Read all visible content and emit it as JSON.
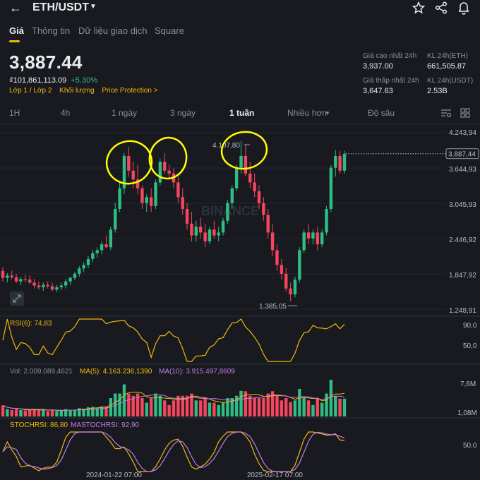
{
  "header": {
    "pair": "ETH/USDT",
    "tabs": [
      "Giá",
      "Thông tin",
      "Dữ liệu giao dịch",
      "Square"
    ],
    "active_tab": 0
  },
  "summary": {
    "price": "3,887.44",
    "local_price": "₫101,861,113.09",
    "change": "+5.30%",
    "links": [
      "Lớp 1 / Lớp 2",
      "Khối lượng",
      "Price Protection >"
    ]
  },
  "stats": {
    "high_label": "Giá cao nhất 24h",
    "high_value": "3,937.00",
    "vol_eth_label": "KL 24h(ETH)",
    "vol_eth_value": "661,505.87",
    "low_label": "Giá thấp nhất 24h",
    "low_value": "3,647.63",
    "vol_usdt_label": "KL 24h(USDT)",
    "vol_usdt_value": "2.53B"
  },
  "timeframes": [
    "1H",
    "4h",
    "1 ngày",
    "3 ngày",
    "1 tuần",
    "Nhiều hơn",
    "Độ sâu"
  ],
  "active_timeframe": 4,
  "chart": {
    "watermark": "BINANCE",
    "y_ticks": [
      "4.243,94",
      "3.644,93",
      "3.045,93",
      "2.446,92",
      "1.847,92",
      "1.248,91"
    ],
    "current_price_label": "3.887,44",
    "high_marker": "4.107,80",
    "low_marker": "1.385,05",
    "x_labels": [
      "2024-01-22 07:00",
      "2025-02-17 07:00"
    ]
  },
  "rsi": {
    "label": "RSI(6): 74,83",
    "ticks": [
      "90,0",
      "50,0"
    ]
  },
  "volume": {
    "vol_label": "Vol: 2.009.089,4621",
    "ma5_label": "MA(5): 4.163.236,1390",
    "ma10_label": "MA(10): 3.915.497,8609",
    "ticks": [
      "7,6M",
      "1,08M"
    ]
  },
  "stochrsi": {
    "label": "STOCHRSI: 86,80",
    "mlabel": "MASTOCHRSI: 92,90",
    "ticks": [
      "50,0"
    ]
  },
  "colors": {
    "up": "#2ebd85",
    "down": "#f6465d",
    "accent": "#f0b90b",
    "annotation": "#ffff00",
    "background": "#181a20"
  },
  "chart_data": {
    "type": "candlestick",
    "ylim": [
      1248.91,
      4243.94
    ],
    "series": [
      {
        "o": 1900,
        "h": 1960,
        "l": 1720,
        "c": 1780
      },
      {
        "o": 1780,
        "h": 1860,
        "l": 1700,
        "c": 1820
      },
      {
        "o": 1820,
        "h": 1900,
        "l": 1760,
        "c": 1790
      },
      {
        "o": 1790,
        "h": 1850,
        "l": 1690,
        "c": 1720
      },
      {
        "o": 1720,
        "h": 1800,
        "l": 1660,
        "c": 1760
      },
      {
        "o": 1760,
        "h": 1830,
        "l": 1700,
        "c": 1750
      },
      {
        "o": 1750,
        "h": 1820,
        "l": 1680,
        "c": 1700
      },
      {
        "o": 1700,
        "h": 1760,
        "l": 1600,
        "c": 1650
      },
      {
        "o": 1650,
        "h": 1720,
        "l": 1580,
        "c": 1620
      },
      {
        "o": 1620,
        "h": 1700,
        "l": 1560,
        "c": 1660
      },
      {
        "o": 1660,
        "h": 1720,
        "l": 1600,
        "c": 1640
      },
      {
        "o": 1640,
        "h": 1700,
        "l": 1560,
        "c": 1580
      },
      {
        "o": 1580,
        "h": 1660,
        "l": 1540,
        "c": 1620
      },
      {
        "o": 1620,
        "h": 1700,
        "l": 1570,
        "c": 1650
      },
      {
        "o": 1650,
        "h": 1760,
        "l": 1600,
        "c": 1720
      },
      {
        "o": 1720,
        "h": 1800,
        "l": 1660,
        "c": 1780
      },
      {
        "o": 1780,
        "h": 1880,
        "l": 1740,
        "c": 1850
      },
      {
        "o": 1850,
        "h": 1980,
        "l": 1800,
        "c": 1940
      },
      {
        "o": 1940,
        "h": 2050,
        "l": 1880,
        "c": 2000
      },
      {
        "o": 2000,
        "h": 2150,
        "l": 1950,
        "c": 2100
      },
      {
        "o": 2100,
        "h": 2260,
        "l": 2050,
        "c": 2200
      },
      {
        "o": 2200,
        "h": 2300,
        "l": 2120,
        "c": 2250
      },
      {
        "o": 2250,
        "h": 2400,
        "l": 2180,
        "c": 2350
      },
      {
        "o": 2350,
        "h": 2500,
        "l": 2280,
        "c": 2300
      },
      {
        "o": 2300,
        "h": 2650,
        "l": 2250,
        "c": 2600
      },
      {
        "o": 2600,
        "h": 3050,
        "l": 2550,
        "c": 2950
      },
      {
        "o": 2950,
        "h": 3400,
        "l": 2900,
        "c": 3300
      },
      {
        "o": 3300,
        "h": 3900,
        "l": 3200,
        "c": 3850
      },
      {
        "o": 3850,
        "h": 4000,
        "l": 3500,
        "c": 3600
      },
      {
        "o": 3600,
        "h": 3750,
        "l": 3300,
        "c": 3450
      },
      {
        "o": 3450,
        "h": 3700,
        "l": 3200,
        "c": 3300
      },
      {
        "o": 3300,
        "h": 3350,
        "l": 2950,
        "c": 3050
      },
      {
        "o": 3050,
        "h": 3200,
        "l": 2900,
        "c": 3150
      },
      {
        "o": 3150,
        "h": 3300,
        "l": 2900,
        "c": 3000
      },
      {
        "o": 3000,
        "h": 3450,
        "l": 2950,
        "c": 3400
      },
      {
        "o": 3400,
        "h": 3800,
        "l": 3350,
        "c": 3750
      },
      {
        "o": 3750,
        "h": 3900,
        "l": 3550,
        "c": 3600
      },
      {
        "o": 3600,
        "h": 3700,
        "l": 3450,
        "c": 3550
      },
      {
        "o": 3550,
        "h": 3650,
        "l": 3300,
        "c": 3400
      },
      {
        "o": 3400,
        "h": 3500,
        "l": 3050,
        "c": 3150
      },
      {
        "o": 3150,
        "h": 3300,
        "l": 2850,
        "c": 2950
      },
      {
        "o": 2950,
        "h": 3050,
        "l": 2600,
        "c": 2700
      },
      {
        "o": 2700,
        "h": 2900,
        "l": 2400,
        "c": 2500
      },
      {
        "o": 2500,
        "h": 2750,
        "l": 2400,
        "c": 2650
      },
      {
        "o": 2650,
        "h": 2800,
        "l": 2450,
        "c": 2550
      },
      {
        "o": 2550,
        "h": 2700,
        "l": 2300,
        "c": 2400
      },
      {
        "o": 2400,
        "h": 2650,
        "l": 2350,
        "c": 2600
      },
      {
        "o": 2600,
        "h": 2750,
        "l": 2450,
        "c": 2500
      },
      {
        "o": 2500,
        "h": 2650,
        "l": 2400,
        "c": 2550
      },
      {
        "o": 2550,
        "h": 2800,
        "l": 2500,
        "c": 2750
      },
      {
        "o": 2750,
        "h": 3100,
        "l": 2700,
        "c": 3050
      },
      {
        "o": 3050,
        "h": 3350,
        "l": 2950,
        "c": 3300
      },
      {
        "o": 3300,
        "h": 3700,
        "l": 3250,
        "c": 3650
      },
      {
        "o": 3650,
        "h": 4107.8,
        "l": 3550,
        "c": 3850
      },
      {
        "o": 3850,
        "h": 4050,
        "l": 3500,
        "c": 3550
      },
      {
        "o": 3550,
        "h": 3750,
        "l": 3300,
        "c": 3400
      },
      {
        "o": 3400,
        "h": 3550,
        "l": 3150,
        "c": 3250
      },
      {
        "o": 3250,
        "h": 3350,
        "l": 2950,
        "c": 3050
      },
      {
        "o": 3050,
        "h": 3150,
        "l": 2750,
        "c": 2850
      },
      {
        "o": 2850,
        "h": 2950,
        "l": 2450,
        "c": 2550
      },
      {
        "o": 2550,
        "h": 2700,
        "l": 2150,
        "c": 2250
      },
      {
        "o": 2250,
        "h": 2350,
        "l": 1900,
        "c": 2000
      },
      {
        "o": 2000,
        "h": 2100,
        "l": 1750,
        "c": 1850
      },
      {
        "o": 1850,
        "h": 1950,
        "l": 1550,
        "c": 1600
      },
      {
        "o": 1600,
        "h": 1700,
        "l": 1385.05,
        "c": 1500
      },
      {
        "o": 1500,
        "h": 1800,
        "l": 1450,
        "c": 1750
      },
      {
        "o": 1750,
        "h": 2300,
        "l": 1700,
        "c": 2250
      },
      {
        "o": 2250,
        "h": 2600,
        "l": 2200,
        "c": 2550
      },
      {
        "o": 2550,
        "h": 2700,
        "l": 2350,
        "c": 2450
      },
      {
        "o": 2450,
        "h": 2600,
        "l": 2350,
        "c": 2550
      },
      {
        "o": 2550,
        "h": 2650,
        "l": 2250,
        "c": 2350
      },
      {
        "o": 2350,
        "h": 2600,
        "l": 2300,
        "c": 2550
      },
      {
        "o": 2550,
        "h": 3000,
        "l": 2500,
        "c": 2950
      },
      {
        "o": 2950,
        "h": 3700,
        "l": 2900,
        "c": 3650
      },
      {
        "o": 3650,
        "h": 3950,
        "l": 3500,
        "c": 3850
      },
      {
        "o": 3850,
        "h": 3937,
        "l": 3550,
        "c": 3600
      },
      {
        "o": 3600,
        "h": 3937,
        "l": 3550,
        "c": 3887.44
      }
    ]
  }
}
